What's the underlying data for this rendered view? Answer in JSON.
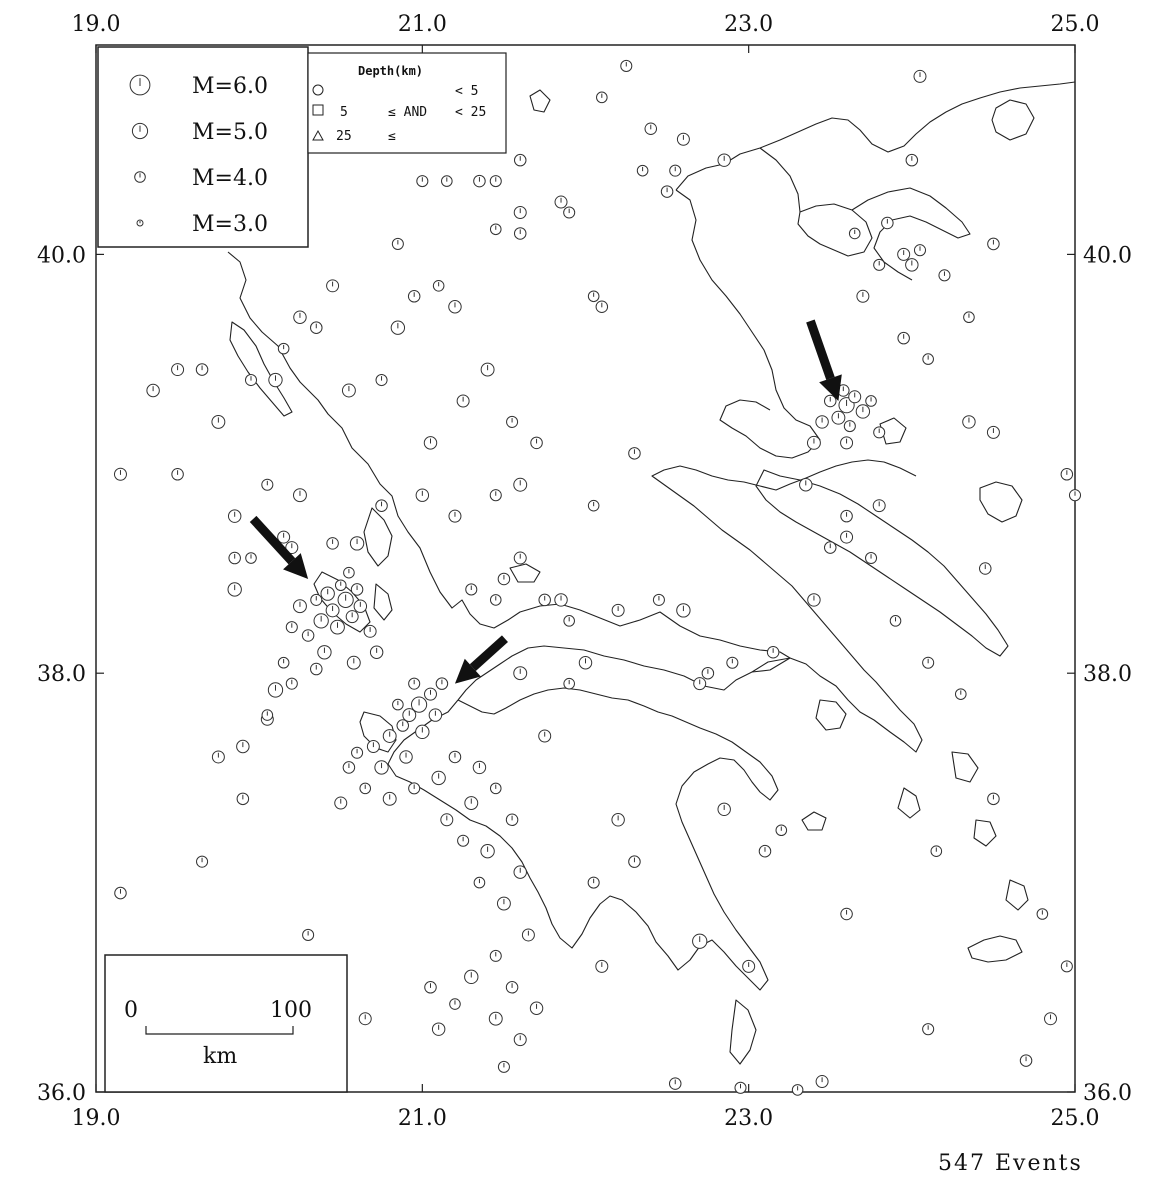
{
  "map": {
    "lon_range": [
      19.0,
      25.0
    ],
    "lat_range": [
      36.0,
      41.0
    ],
    "x_ticks": [
      {
        "value": 19.0,
        "label": "19.0"
      },
      {
        "value": 21.0,
        "label": "21.0"
      },
      {
        "value": 23.0,
        "label": "23.0"
      },
      {
        "value": 25.0,
        "label": "25.0"
      }
    ],
    "y_ticks": [
      {
        "value": 40.0,
        "label": "40.0"
      },
      {
        "value": 38.0,
        "label": "38.0"
      },
      {
        "value": 36.0,
        "label": "36.0"
      }
    ],
    "events_label": "547 Events",
    "line_color": "#222222"
  },
  "magnitude_legend": [
    {
      "label": "M=6.0",
      "magnitude": 6.0
    },
    {
      "label": "M=5.0",
      "magnitude": 5.0
    },
    {
      "label": "M=4.0",
      "magnitude": 4.0
    },
    {
      "label": "M=3.0",
      "magnitude": 3.0
    }
  ],
  "depth_legend": {
    "title": "Depth(km)",
    "rows": [
      {
        "symbol": "circle",
        "col1": "",
        "col2": "",
        "col3": "< 5"
      },
      {
        "symbol": "square",
        "col1": "5",
        "col2": "≤ AND",
        "col3": "< 25"
      },
      {
        "symbol": "triangle",
        "col1": "25",
        "col2": "≤",
        "col3": ""
      }
    ]
  },
  "scale_bar": {
    "left_label": "0",
    "right_label": "100",
    "unit": "km"
  },
  "arrows": [
    {
      "name": "arrow-east-cluster",
      "lon": 23.55,
      "lat": 39.3
    },
    {
      "name": "arrow-west-cluster",
      "lon": 20.3,
      "lat": 38.45
    },
    {
      "name": "arrow-central-cluster",
      "lon": 21.2,
      "lat": 37.95
    }
  ],
  "events": [
    {
      "lon": 20.53,
      "lat": 38.35,
      "m": 5.0
    },
    {
      "lon": 20.45,
      "lat": 38.3,
      "m": 4.5
    },
    {
      "lon": 20.6,
      "lat": 38.4,
      "m": 4.2
    },
    {
      "lon": 20.38,
      "lat": 38.25,
      "m": 4.8
    },
    {
      "lon": 20.5,
      "lat": 38.42,
      "m": 4.0
    },
    {
      "lon": 20.42,
      "lat": 38.38,
      "m": 4.6
    },
    {
      "lon": 20.57,
      "lat": 38.27,
      "m": 4.3
    },
    {
      "lon": 20.35,
      "lat": 38.35,
      "m": 4.1
    },
    {
      "lon": 20.48,
      "lat": 38.22,
      "m": 4.7
    },
    {
      "lon": 20.62,
      "lat": 38.32,
      "m": 4.4
    },
    {
      "lon": 20.3,
      "lat": 38.18,
      "m": 4.2
    },
    {
      "lon": 20.55,
      "lat": 38.48,
      "m": 4.0
    },
    {
      "lon": 20.25,
      "lat": 38.32,
      "m": 4.5
    },
    {
      "lon": 20.68,
      "lat": 38.2,
      "m": 4.3
    },
    {
      "lon": 20.4,
      "lat": 38.1,
      "m": 4.6
    },
    {
      "lon": 20.2,
      "lat": 38.22,
      "m": 4.1
    },
    {
      "lon": 20.72,
      "lat": 38.1,
      "m": 4.4
    },
    {
      "lon": 20.15,
      "lat": 38.05,
      "m": 4.0
    },
    {
      "lon": 20.35,
      "lat": 38.02,
      "m": 4.2
    },
    {
      "lon": 20.58,
      "lat": 38.05,
      "m": 4.5
    },
    {
      "lon": 20.1,
      "lat": 37.92,
      "m": 4.8
    },
    {
      "lon": 20.05,
      "lat": 37.78,
      "m": 4.3
    },
    {
      "lon": 20.2,
      "lat": 37.95,
      "m": 4.1
    },
    {
      "lon": 20.6,
      "lat": 38.62,
      "m": 4.6
    },
    {
      "lon": 20.45,
      "lat": 38.62,
      "m": 4.2
    },
    {
      "lon": 20.98,
      "lat": 37.85,
      "m": 5.0
    },
    {
      "lon": 20.92,
      "lat": 37.8,
      "m": 4.5
    },
    {
      "lon": 21.05,
      "lat": 37.9,
      "m": 4.3
    },
    {
      "lon": 20.88,
      "lat": 37.75,
      "m": 4.2
    },
    {
      "lon": 21.0,
      "lat": 37.72,
      "m": 4.6
    },
    {
      "lon": 20.95,
      "lat": 37.95,
      "m": 4.1
    },
    {
      "lon": 21.08,
      "lat": 37.8,
      "m": 4.4
    },
    {
      "lon": 20.85,
      "lat": 37.85,
      "m": 4.0
    },
    {
      "lon": 21.12,
      "lat": 37.95,
      "m": 4.2
    },
    {
      "lon": 20.8,
      "lat": 37.7,
      "m": 4.5
    },
    {
      "lon": 20.7,
      "lat": 37.65,
      "m": 4.3
    },
    {
      "lon": 20.6,
      "lat": 37.62,
      "m": 4.1
    },
    {
      "lon": 20.75,
      "lat": 37.55,
      "m": 4.6
    },
    {
      "lon": 20.55,
      "lat": 37.55,
      "m": 4.2
    },
    {
      "lon": 20.9,
      "lat": 37.6,
      "m": 4.4
    },
    {
      "lon": 20.65,
      "lat": 37.45,
      "m": 4.0
    },
    {
      "lon": 20.8,
      "lat": 37.4,
      "m": 4.5
    },
    {
      "lon": 20.5,
      "lat": 37.38,
      "m": 4.3
    },
    {
      "lon": 20.95,
      "lat": 37.45,
      "m": 4.1
    },
    {
      "lon": 21.1,
      "lat": 37.5,
      "m": 4.6
    },
    {
      "lon": 21.2,
      "lat": 37.6,
      "m": 4.2
    },
    {
      "lon": 21.35,
      "lat": 37.55,
      "m": 4.4
    },
    {
      "lon": 21.45,
      "lat": 37.45,
      "m": 4.0
    },
    {
      "lon": 21.3,
      "lat": 37.38,
      "m": 4.5
    },
    {
      "lon": 21.15,
      "lat": 37.3,
      "m": 4.3
    },
    {
      "lon": 21.25,
      "lat": 37.2,
      "m": 4.1
    },
    {
      "lon": 21.4,
      "lat": 37.15,
      "m": 4.6
    },
    {
      "lon": 21.55,
      "lat": 37.3,
      "m": 4.2
    },
    {
      "lon": 21.6,
      "lat": 37.05,
      "m": 4.4
    },
    {
      "lon": 21.35,
      "lat": 37.0,
      "m": 4.0
    },
    {
      "lon": 21.5,
      "lat": 36.9,
      "m": 4.5
    },
    {
      "lon": 21.65,
      "lat": 36.75,
      "m": 4.3
    },
    {
      "lon": 21.45,
      "lat": 36.65,
      "m": 4.1
    },
    {
      "lon": 21.3,
      "lat": 36.55,
      "m": 4.6
    },
    {
      "lon": 21.55,
      "lat": 36.5,
      "m": 4.2
    },
    {
      "lon": 21.7,
      "lat": 36.4,
      "m": 4.4
    },
    {
      "lon": 21.2,
      "lat": 36.42,
      "m": 4.0
    },
    {
      "lon": 21.45,
      "lat": 36.35,
      "m": 4.5
    },
    {
      "lon": 21.6,
      "lat": 36.25,
      "m": 4.3
    },
    {
      "lon": 21.5,
      "lat": 36.12,
      "m": 4.1
    },
    {
      "lon": 20.65,
      "lat": 36.35,
      "m": 4.3
    },
    {
      "lon": 21.05,
      "lat": 36.5,
      "m": 4.2
    },
    {
      "lon": 21.1,
      "lat": 36.3,
      "m": 4.4
    },
    {
      "lon": 23.6,
      "lat": 39.28,
      "m": 5.0
    },
    {
      "lon": 23.55,
      "lat": 39.22,
      "m": 4.5
    },
    {
      "lon": 23.65,
      "lat": 39.32,
      "m": 4.3
    },
    {
      "lon": 23.5,
      "lat": 39.3,
      "m": 4.2
    },
    {
      "lon": 23.7,
      "lat": 39.25,
      "m": 4.6
    },
    {
      "lon": 23.62,
      "lat": 39.18,
      "m": 4.1
    },
    {
      "lon": 23.45,
      "lat": 39.2,
      "m": 4.4
    },
    {
      "lon": 23.75,
      "lat": 39.3,
      "m": 4.0
    },
    {
      "lon": 23.58,
      "lat": 39.35,
      "m": 4.2
    },
    {
      "lon": 23.4,
      "lat": 39.1,
      "m": 4.5
    },
    {
      "lon": 23.6,
      "lat": 39.1,
      "m": 4.3
    },
    {
      "lon": 23.8,
      "lat": 39.15,
      "m": 4.1
    },
    {
      "lon": 19.35,
      "lat": 39.35,
      "m": 4.4
    },
    {
      "lon": 19.5,
      "lat": 39.45,
      "m": 4.3
    },
    {
      "lon": 19.65,
      "lat": 39.45,
      "m": 4.2
    },
    {
      "lon": 19.75,
      "lat": 39.2,
      "m": 4.5
    },
    {
      "lon": 19.95,
      "lat": 39.4,
      "m": 4.1
    },
    {
      "lon": 20.1,
      "lat": 39.4,
      "m": 4.6
    },
    {
      "lon": 20.15,
      "lat": 39.55,
      "m": 4.0
    },
    {
      "lon": 20.25,
      "lat": 39.7,
      "m": 4.4
    },
    {
      "lon": 20.35,
      "lat": 39.65,
      "m": 4.2
    },
    {
      "lon": 20.45,
      "lat": 39.85,
      "m": 4.3
    },
    {
      "lon": 20.55,
      "lat": 39.35,
      "m": 4.5
    },
    {
      "lon": 20.75,
      "lat": 39.4,
      "m": 4.1
    },
    {
      "lon": 20.85,
      "lat": 39.65,
      "m": 4.6
    },
    {
      "lon": 20.95,
      "lat": 39.8,
      "m": 4.2
    },
    {
      "lon": 21.1,
      "lat": 39.85,
      "m": 4.0
    },
    {
      "lon": 21.2,
      "lat": 39.75,
      "m": 4.4
    },
    {
      "lon": 21.25,
      "lat": 39.3,
      "m": 4.3
    },
    {
      "lon": 21.4,
      "lat": 39.45,
      "m": 4.5
    },
    {
      "lon": 21.55,
      "lat": 39.2,
      "m": 4.1
    },
    {
      "lon": 21.7,
      "lat": 39.1,
      "m": 4.2
    },
    {
      "lon": 19.15,
      "lat": 38.95,
      "m": 4.3
    },
    {
      "lon": 19.5,
      "lat": 38.95,
      "m": 4.2
    },
    {
      "lon": 19.85,
      "lat": 38.75,
      "m": 4.4
    },
    {
      "lon": 20.05,
      "lat": 38.9,
      "m": 4.1
    },
    {
      "lon": 20.25,
      "lat": 38.85,
      "m": 4.5
    },
    {
      "lon": 20.15,
      "lat": 38.65,
      "m": 4.3
    },
    {
      "lon": 19.95,
      "lat": 38.55,
      "m": 4.0
    },
    {
      "lon": 19.85,
      "lat": 38.4,
      "m": 4.6
    },
    {
      "lon": 20.75,
      "lat": 38.8,
      "m": 4.2
    },
    {
      "lon": 21.0,
      "lat": 38.85,
      "m": 4.4
    },
    {
      "lon": 21.2,
      "lat": 38.75,
      "m": 4.3
    },
    {
      "lon": 21.45,
      "lat": 38.85,
      "m": 4.1
    },
    {
      "lon": 21.6,
      "lat": 38.9,
      "m": 4.5
    },
    {
      "lon": 21.75,
      "lat": 38.35,
      "m": 4.2
    },
    {
      "lon": 21.9,
      "lat": 38.25,
      "m": 4.0
    },
    {
      "lon": 22.0,
      "lat": 38.05,
      "m": 4.4
    },
    {
      "lon": 22.2,
      "lat": 38.3,
      "m": 4.3
    },
    {
      "lon": 22.45,
      "lat": 38.35,
      "m": 4.1
    },
    {
      "lon": 22.6,
      "lat": 38.3,
      "m": 4.6
    },
    {
      "lon": 22.75,
      "lat": 38.0,
      "m": 4.2
    },
    {
      "lon": 21.6,
      "lat": 38.0,
      "m": 4.5
    },
    {
      "lon": 21.75,
      "lat": 37.7,
      "m": 4.3
    },
    {
      "lon": 21.9,
      "lat": 37.95,
      "m": 4.0
    },
    {
      "lon": 22.2,
      "lat": 37.3,
      "m": 4.4
    },
    {
      "lon": 22.3,
      "lat": 37.1,
      "m": 4.2
    },
    {
      "lon": 22.05,
      "lat": 37.0,
      "m": 4.1
    },
    {
      "lon": 22.1,
      "lat": 36.6,
      "m": 4.3
    },
    {
      "lon": 22.55,
      "lat": 36.04,
      "m": 4.2
    },
    {
      "lon": 22.7,
      "lat": 36.72,
      "m": 4.8
    },
    {
      "lon": 23.0,
      "lat": 36.6,
      "m": 4.3
    },
    {
      "lon": 22.95,
      "lat": 36.02,
      "m": 4.1
    },
    {
      "lon": 23.3,
      "lat": 36.01,
      "m": 4.0
    },
    {
      "lon": 23.45,
      "lat": 36.05,
      "m": 4.3
    },
    {
      "lon": 22.85,
      "lat": 37.35,
      "m": 4.4
    },
    {
      "lon": 23.1,
      "lat": 37.15,
      "m": 4.2
    },
    {
      "lon": 23.2,
      "lat": 37.25,
      "m": 4.0
    },
    {
      "lon": 23.6,
      "lat": 36.85,
      "m": 4.2
    },
    {
      "lon": 24.1,
      "lat": 36.3,
      "m": 4.1
    },
    {
      "lon": 24.15,
      "lat": 37.15,
      "m": 4.0
    },
    {
      "lon": 24.7,
      "lat": 36.15,
      "m": 4.2
    },
    {
      "lon": 24.85,
      "lat": 36.35,
      "m": 4.3
    },
    {
      "lon": 24.95,
      "lat": 36.6,
      "m": 4.1
    },
    {
      "lon": 24.8,
      "lat": 36.85,
      "m": 4.0
    },
    {
      "lon": 24.5,
      "lat": 37.4,
      "m": 4.2
    },
    {
      "lon": 22.7,
      "lat": 37.95,
      "m": 4.3
    },
    {
      "lon": 22.9,
      "lat": 38.05,
      "m": 4.1
    },
    {
      "lon": 23.15,
      "lat": 38.1,
      "m": 4.2
    },
    {
      "lon": 23.4,
      "lat": 38.35,
      "m": 4.4
    },
    {
      "lon": 23.5,
      "lat": 38.6,
      "m": 4.2
    },
    {
      "lon": 23.6,
      "lat": 38.65,
      "m": 4.3
    },
    {
      "lon": 23.75,
      "lat": 38.55,
      "m": 4.1
    },
    {
      "lon": 23.9,
      "lat": 38.25,
      "m": 4.0
    },
    {
      "lon": 23.35,
      "lat": 38.9,
      "m": 4.4
    },
    {
      "lon": 23.6,
      "lat": 38.75,
      "m": 4.2
    },
    {
      "lon": 23.8,
      "lat": 38.8,
      "m": 4.3
    },
    {
      "lon": 24.1,
      "lat": 38.05,
      "m": 4.1
    },
    {
      "lon": 24.3,
      "lat": 37.9,
      "m": 4.0
    },
    {
      "lon": 24.45,
      "lat": 38.5,
      "m": 4.2
    },
    {
      "lon": 24.35,
      "lat": 39.2,
      "m": 4.4
    },
    {
      "lon": 24.5,
      "lat": 39.15,
      "m": 4.3
    },
    {
      "lon": 24.95,
      "lat": 38.95,
      "m": 4.2
    },
    {
      "lon": 25.0,
      "lat": 38.85,
      "m": 4.1
    },
    {
      "lon": 24.1,
      "lat": 39.5,
      "m": 4.0
    },
    {
      "lon": 23.95,
      "lat": 39.6,
      "m": 4.2
    },
    {
      "lon": 24.2,
      "lat": 39.9,
      "m": 4.1
    },
    {
      "lon": 24.35,
      "lat": 39.7,
      "m": 4.0
    },
    {
      "lon": 24.5,
      "lat": 40.05,
      "m": 4.2
    },
    {
      "lon": 23.95,
      "lat": 40.0,
      "m": 4.3
    },
    {
      "lon": 24.0,
      "lat": 39.95,
      "m": 4.4
    },
    {
      "lon": 24.05,
      "lat": 40.02,
      "m": 4.1
    },
    {
      "lon": 23.85,
      "lat": 40.15,
      "m": 4.2
    },
    {
      "lon": 23.65,
      "lat": 40.1,
      "m": 4.0
    },
    {
      "lon": 23.7,
      "lat": 39.8,
      "m": 4.3
    },
    {
      "lon": 23.8,
      "lat": 39.95,
      "m": 4.1
    },
    {
      "lon": 24.0,
      "lat": 40.45,
      "m": 4.2
    },
    {
      "lon": 24.05,
      "lat": 40.85,
      "m": 4.3
    },
    {
      "lon": 22.25,
      "lat": 40.9,
      "m": 4.1
    },
    {
      "lon": 22.1,
      "lat": 40.75,
      "m": 4.0
    },
    {
      "lon": 22.4,
      "lat": 40.6,
      "m": 4.2
    },
    {
      "lon": 22.6,
      "lat": 40.55,
      "m": 4.3
    },
    {
      "lon": 22.55,
      "lat": 40.4,
      "m": 4.1
    },
    {
      "lon": 22.35,
      "lat": 40.4,
      "m": 4.0
    },
    {
      "lon": 22.5,
      "lat": 40.3,
      "m": 4.2
    },
    {
      "lon": 22.85,
      "lat": 40.45,
      "m": 4.4
    },
    {
      "lon": 21.6,
      "lat": 40.45,
      "m": 4.2
    },
    {
      "lon": 21.45,
      "lat": 40.35,
      "m": 4.1
    },
    {
      "lon": 21.6,
      "lat": 40.2,
      "m": 4.3
    },
    {
      "lon": 21.15,
      "lat": 40.35,
      "m": 4.0
    },
    {
      "lon": 21.35,
      "lat": 40.35,
      "m": 4.2
    },
    {
      "lon": 21.0,
      "lat": 40.35,
      "m": 4.1
    },
    {
      "lon": 21.45,
      "lat": 40.12,
      "m": 4.0
    },
    {
      "lon": 21.6,
      "lat": 40.1,
      "m": 4.2
    },
    {
      "lon": 21.85,
      "lat": 40.25,
      "m": 4.3
    },
    {
      "lon": 21.9,
      "lat": 40.2,
      "m": 4.1
    },
    {
      "lon": 22.1,
      "lat": 39.75,
      "m": 4.2
    },
    {
      "lon": 22.05,
      "lat": 39.8,
      "m": 4.0
    },
    {
      "lon": 20.85,
      "lat": 40.05,
      "m": 4.1
    },
    {
      "lon": 21.05,
      "lat": 39.1,
      "m": 4.4
    },
    {
      "lon": 21.5,
      "lat": 38.45,
      "m": 4.2
    },
    {
      "lon": 22.05,
      "lat": 38.8,
      "m": 4.0
    },
    {
      "lon": 22.3,
      "lat": 39.05,
      "m": 4.2
    },
    {
      "lon": 21.85,
      "lat": 38.35,
      "m": 4.4
    },
    {
      "lon": 21.6,
      "lat": 38.55,
      "m": 4.3
    },
    {
      "lon": 21.3,
      "lat": 38.4,
      "m": 4.1
    },
    {
      "lon": 21.45,
      "lat": 38.35,
      "m": 4.0
    },
    {
      "lon": 19.15,
      "lat": 36.95,
      "m": 4.2
    },
    {
      "lon": 19.65,
      "lat": 37.1,
      "m": 4.1
    },
    {
      "lon": 19.9,
      "lat": 37.4,
      "m": 4.2
    },
    {
      "lon": 20.3,
      "lat": 36.75,
      "m": 4.1
    },
    {
      "lon": 19.9,
      "lat": 37.65,
      "m": 4.4
    },
    {
      "lon": 19.75,
      "lat": 37.6,
      "m": 4.3
    },
    {
      "lon": 20.05,
      "lat": 37.8,
      "m": 4.0
    },
    {
      "lon": 20.2,
      "lat": 38.6,
      "m": 4.3
    },
    {
      "lon": 19.85,
      "lat": 38.55,
      "m": 4.2
    }
  ]
}
